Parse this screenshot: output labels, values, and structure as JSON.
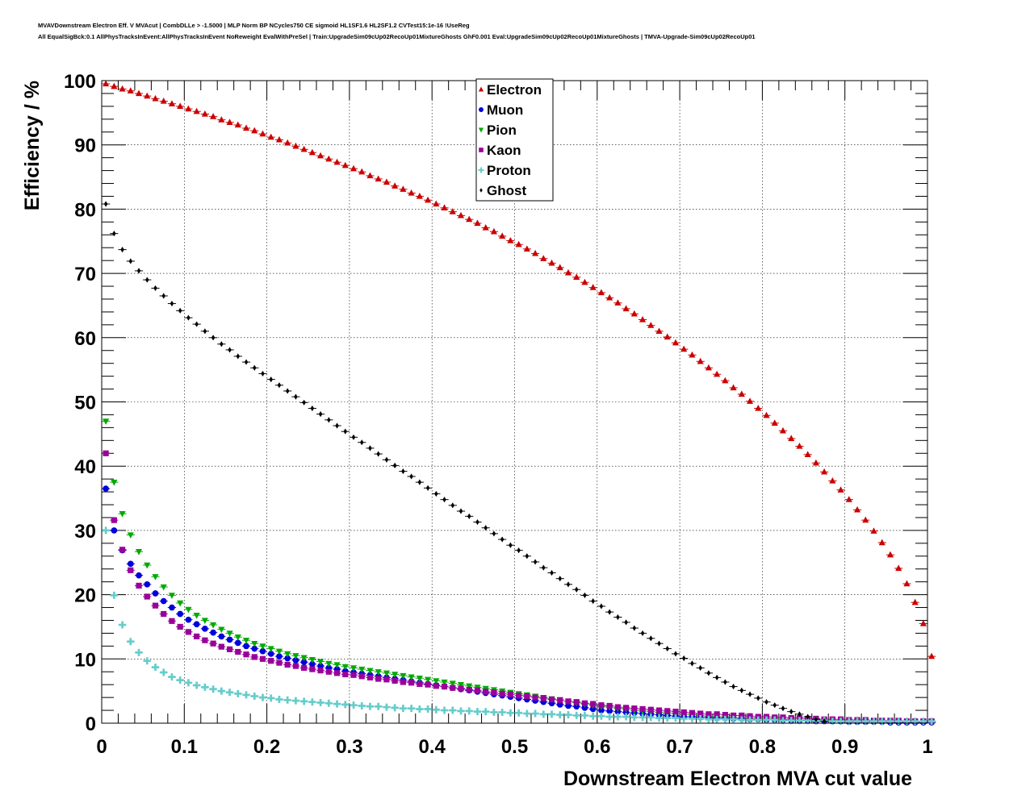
{
  "header": {
    "line1": "MVAVDownstream Electron Eff. V MVAcut | CombDLLe > -1.5000 | MLP Norm BP NCycles750 CE sigmoid HL1SF1.6 HL2SF1.2 CVTest15:1e-16 !UseReg",
    "line2": "All EqualSigBck:0.1 AllPhysTracksInEvent:AllPhysTracksInEvent NoReweight EvalWithPreSel | Train:UpgradeSim09cUp02RecoUp01MixtureGhosts GhF0.001 Eval:UpgradeSim09cUp02RecoUp01MixtureGhosts | TMVA-Upgrade-Sim09cUp02RecoUp01"
  },
  "chart_data": {
    "type": "scatter",
    "xlabel": "Downstream Electron MVA cut value",
    "ylabel": "Efficiency / %",
    "xlim": [
      0,
      1
    ],
    "ylim": [
      0,
      100
    ],
    "grid": true,
    "legend_position": "top-center",
    "x_ticks": [
      "0",
      "0.1",
      "0.2",
      "0.3",
      "0.4",
      "0.5",
      "0.6",
      "0.7",
      "0.8",
      "0.9",
      "1"
    ],
    "y_ticks": [
      "0",
      "10",
      "20",
      "30",
      "40",
      "50",
      "60",
      "70",
      "80",
      "90",
      "100"
    ],
    "x_bin_width": 0.01,
    "series": [
      {
        "name": "Electron",
        "marker": "triangle-up",
        "color": "#cc0000",
        "values": [
          99.5,
          99.1,
          98.7,
          98.4,
          98.0,
          97.6,
          97.2,
          96.8,
          96.4,
          96.0,
          95.6,
          95.2,
          94.8,
          94.4,
          93.9,
          93.5,
          93.1,
          92.6,
          92.2,
          91.7,
          91.2,
          90.8,
          90.3,
          89.8,
          89.3,
          88.8,
          88.3,
          87.8,
          87.3,
          86.8,
          86.3,
          85.8,
          85.2,
          84.7,
          84.2,
          83.6,
          83.1,
          82.5,
          82.0,
          81.4,
          80.8,
          80.2,
          79.6,
          79.0,
          78.4,
          77.8,
          77.1,
          76.5,
          75.8,
          75.1,
          74.5,
          73.8,
          73.1,
          72.3,
          71.6,
          70.9,
          70.1,
          69.4,
          68.6,
          67.8,
          67.0,
          66.2,
          65.4,
          64.5,
          63.7,
          62.8,
          61.9,
          61.0,
          60.1,
          59.2,
          58.2,
          57.3,
          56.3,
          55.3,
          54.3,
          53.3,
          52.2,
          51.2,
          50.1,
          49.0,
          47.9,
          46.7,
          45.5,
          44.3,
          43.1,
          41.8,
          40.5,
          39.1,
          37.7,
          36.3,
          34.8,
          33.2,
          31.6,
          29.9,
          28.1,
          26.2,
          24.1,
          21.7,
          18.8,
          15.5,
          10.4
        ]
      },
      {
        "name": "Muon",
        "marker": "circle",
        "color": "#0000dd",
        "values": [
          36.5,
          30.0,
          26.9,
          24.8,
          23.0,
          21.6,
          20.2,
          19.0,
          18.0,
          17.0,
          16.1,
          15.4,
          14.7,
          14.1,
          13.5,
          13.0,
          12.5,
          12.0,
          11.6,
          11.2,
          10.8,
          10.4,
          10.1,
          9.8,
          9.5,
          9.2,
          8.9,
          8.6,
          8.4,
          8.1,
          7.9,
          7.7,
          7.5,
          7.3,
          7.1,
          6.9,
          6.7,
          6.5,
          6.3,
          6.1,
          5.9,
          5.7,
          5.5,
          5.3,
          5.1,
          4.9,
          4.7,
          4.5,
          4.3,
          4.1,
          3.9,
          3.7,
          3.5,
          3.3,
          3.1,
          2.9,
          2.7,
          2.6,
          2.4,
          2.2,
          2.0,
          1.9,
          1.8,
          1.7,
          1.6,
          1.5,
          1.4,
          1.3,
          1.2,
          1.1,
          1.0,
          1.0,
          0.9,
          0.9,
          0.8,
          0.8,
          0.7,
          0.7,
          0.6,
          0.6,
          0.5,
          0.5,
          0.5,
          0.4,
          0.4,
          0.4,
          0.3,
          0.3,
          0.3,
          0.3,
          0.2,
          0.2,
          0.2,
          0.2,
          0.2,
          0.1,
          0.1,
          0.1,
          0.1,
          0.1,
          0.1
        ]
      },
      {
        "name": "Pion",
        "marker": "triangle-down",
        "color": "#00aa00",
        "values": [
          47.0,
          37.5,
          32.6,
          29.3,
          26.7,
          24.6,
          22.8,
          21.2,
          19.9,
          18.7,
          17.7,
          16.8,
          16.0,
          15.3,
          14.6,
          14.0,
          13.4,
          12.9,
          12.4,
          12.0,
          11.6,
          11.2,
          10.8,
          10.5,
          10.2,
          9.9,
          9.6,
          9.3,
          9.1,
          8.8,
          8.6,
          8.4,
          8.2,
          8.0,
          7.8,
          7.6,
          7.4,
          7.2,
          7.0,
          6.8,
          6.6,
          6.4,
          6.2,
          6.0,
          5.8,
          5.6,
          5.4,
          5.2,
          5.0,
          4.8,
          4.6,
          4.4,
          4.2,
          4.0,
          3.8,
          3.6,
          3.4,
          3.2,
          3.0,
          2.8,
          2.6,
          2.5,
          2.3,
          2.2,
          2.0,
          1.9,
          1.8,
          1.7,
          1.6,
          1.5,
          1.4,
          1.3,
          1.2,
          1.1,
          1.0,
          1.0,
          0.9,
          0.9,
          0.8,
          0.8,
          0.7,
          0.7,
          0.6,
          0.6,
          0.5,
          0.5,
          0.5,
          0.4,
          0.4,
          0.4,
          0.3,
          0.3,
          0.3,
          0.3,
          0.2,
          0.2,
          0.2,
          0.2,
          0.2,
          0.2,
          0.2
        ]
      },
      {
        "name": "Kaon",
        "marker": "square",
        "color": "#990099",
        "values": [
          42.0,
          31.6,
          27.0,
          23.8,
          21.4,
          19.7,
          18.3,
          17.0,
          15.9,
          15.0,
          14.2,
          13.5,
          12.9,
          12.4,
          11.9,
          11.5,
          11.1,
          10.7,
          10.3,
          10.0,
          9.7,
          9.4,
          9.1,
          8.9,
          8.6,
          8.4,
          8.2,
          8.0,
          7.8,
          7.6,
          7.5,
          7.3,
          7.1,
          6.9,
          6.8,
          6.6,
          6.4,
          6.3,
          6.1,
          6.0,
          5.8,
          5.7,
          5.5,
          5.4,
          5.2,
          5.1,
          4.9,
          4.8,
          4.6,
          4.5,
          4.3,
          4.2,
          4.0,
          3.9,
          3.7,
          3.6,
          3.4,
          3.3,
          3.1,
          3.0,
          2.8,
          2.7,
          2.5,
          2.4,
          2.3,
          2.2,
          2.1,
          2.0,
          1.9,
          1.8,
          1.7,
          1.6,
          1.5,
          1.4,
          1.4,
          1.3,
          1.2,
          1.2,
          1.1,
          1.0,
          1.0,
          0.9,
          0.9,
          0.8,
          0.8,
          0.7,
          0.7,
          0.6,
          0.6,
          0.6,
          0.5,
          0.5,
          0.5,
          0.4,
          0.4,
          0.4,
          0.4,
          0.3,
          0.3,
          0.3,
          0.3
        ]
      },
      {
        "name": "Proton",
        "marker": "cross",
        "color": "#66cccc",
        "values": [
          30.0,
          19.9,
          15.3,
          12.7,
          11.0,
          9.7,
          8.7,
          7.9,
          7.2,
          6.7,
          6.3,
          5.9,
          5.6,
          5.3,
          5.0,
          4.8,
          4.6,
          4.4,
          4.2,
          4.0,
          3.9,
          3.7,
          3.6,
          3.5,
          3.4,
          3.3,
          3.2,
          3.1,
          3.0,
          2.9,
          2.8,
          2.7,
          2.6,
          2.6,
          2.5,
          2.4,
          2.3,
          2.3,
          2.2,
          2.2,
          2.1,
          2.0,
          2.0,
          1.9,
          1.9,
          1.8,
          1.8,
          1.7,
          1.7,
          1.6,
          1.6,
          1.5,
          1.5,
          1.4,
          1.4,
          1.3,
          1.3,
          1.2,
          1.2,
          1.1,
          1.1,
          1.0,
          1.0,
          1.0,
          0.9,
          0.9,
          0.9,
          0.8,
          0.8,
          0.8,
          0.7,
          0.7,
          0.7,
          0.6,
          0.6,
          0.6,
          0.6,
          0.5,
          0.5,
          0.5,
          0.5,
          0.5,
          0.4,
          0.4,
          0.4,
          0.4,
          0.4,
          0.4,
          0.3,
          0.3,
          0.3,
          0.3,
          0.3,
          0.3,
          0.3,
          0.3,
          0.3,
          0.3,
          0.3,
          0.3,
          0.3
        ]
      },
      {
        "name": "Ghost",
        "marker": "diamond",
        "color": "#000000",
        "values": [
          80.8,
          76.2,
          73.7,
          71.9,
          70.4,
          69.0,
          67.7,
          66.5,
          65.3,
          64.2,
          63.1,
          62.1,
          61.0,
          60.0,
          59.0,
          58.1,
          57.1,
          56.2,
          55.3,
          54.4,
          53.5,
          52.6,
          51.7,
          50.8,
          49.9,
          49.0,
          48.1,
          47.2,
          46.3,
          45.4,
          44.5,
          43.7,
          42.8,
          41.9,
          41.0,
          40.1,
          39.2,
          38.4,
          37.5,
          36.6,
          35.7,
          34.8,
          33.9,
          33.0,
          32.2,
          31.3,
          30.4,
          29.5,
          28.6,
          27.7,
          26.9,
          26.0,
          25.1,
          24.2,
          23.4,
          22.5,
          21.6,
          20.8,
          19.9,
          19.0,
          18.2,
          17.3,
          16.5,
          15.7,
          14.8,
          14.0,
          13.2,
          12.4,
          11.6,
          10.8,
          10.1,
          9.3,
          8.6,
          7.8,
          7.1,
          6.4,
          5.7,
          5.1,
          4.5,
          3.9,
          3.3,
          2.8,
          2.3,
          1.8,
          1.4,
          1.0,
          0.6,
          0.3
        ]
      }
    ]
  }
}
